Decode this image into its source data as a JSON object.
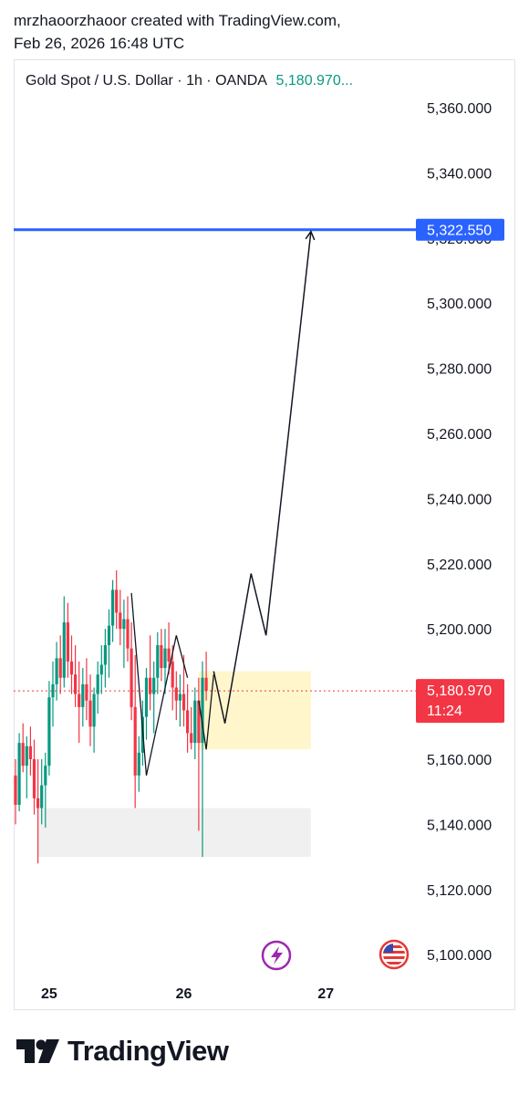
{
  "header": {
    "line1": "mrzhaoorzhaoor created with TradingView.com,",
    "line2": "Feb 26, 2026 16:48 UTC"
  },
  "symbol_info": {
    "title": "Gold Spot / U.S. Dollar · 1h · OANDA",
    "price": "5,180.970..."
  },
  "price_labels": {
    "target": "5,322.550",
    "current": "5,180.970",
    "countdown": "11:24"
  },
  "footer": {
    "brand": "TradingView"
  },
  "colors": {
    "up": "#089981",
    "down": "#f23645",
    "target_line": "#2962ff",
    "zone": "#fff6cc",
    "support": "#f0f0f0"
  },
  "chart_data": {
    "type": "candlestick",
    "title": "Gold Spot / U.S. Dollar · 1h · OANDA",
    "ylim": [
      5093,
      5368
    ],
    "y_ticks": [
      "5,100.000",
      "5,120.000",
      "5,140.000",
      "5,160.000",
      "5,180.000",
      "5,200.000",
      "5,220.000",
      "5,240.000",
      "5,260.000",
      "5,280.000",
      "5,300.000",
      "5,320.000",
      "5,340.000",
      "5,360.000"
    ],
    "x_ticks": [
      {
        "label": "25",
        "bar": 9
      },
      {
        "label": "26",
        "bar": 45
      },
      {
        "label": "27",
        "bar": 83
      }
    ],
    "candles": [
      [
        5155,
        5160,
        5140,
        5146
      ],
      [
        5146,
        5168,
        5144,
        5165
      ],
      [
        5165,
        5171,
        5156,
        5158
      ],
      [
        5158,
        5167,
        5148,
        5164
      ],
      [
        5164,
        5170,
        5155,
        5160
      ],
      [
        5160,
        5166,
        5143,
        5148
      ],
      [
        5148,
        5160,
        5128,
        5145
      ],
      [
        5145,
        5160,
        5140,
        5152
      ],
      [
        5152,
        5162,
        5139,
        5158
      ],
      [
        5158,
        5184,
        5155,
        5179
      ],
      [
        5179,
        5190,
        5170,
        5183
      ],
      [
        5183,
        5196,
        5178,
        5191
      ],
      [
        5191,
        5198,
        5180,
        5185
      ],
      [
        5185,
        5210,
        5182,
        5202
      ],
      [
        5202,
        5208,
        5185,
        5190
      ],
      [
        5190,
        5198,
        5180,
        5186
      ],
      [
        5186,
        5195,
        5176,
        5180
      ],
      [
        5180,
        5190,
        5165,
        5176
      ],
      [
        5176,
        5188,
        5170,
        5183
      ],
      [
        5183,
        5191,
        5172,
        5178
      ],
      [
        5178,
        5186,
        5164,
        5170
      ],
      [
        5170,
        5182,
        5162,
        5180
      ],
      [
        5180,
        5190,
        5174,
        5186
      ],
      [
        5186,
        5195,
        5180,
        5189
      ],
      [
        5189,
        5200,
        5182,
        5195
      ],
      [
        5195,
        5206,
        5185,
        5201
      ],
      [
        5201,
        5215,
        5196,
        5212
      ],
      [
        5212,
        5218,
        5200,
        5205
      ],
      [
        5205,
        5212,
        5195,
        5200
      ],
      [
        5200,
        5209,
        5188,
        5203
      ],
      [
        5203,
        5210,
        5190,
        5194
      ],
      [
        5194,
        5202,
        5172,
        5176
      ],
      [
        5176,
        5192,
        5145,
        5155
      ],
      [
        5155,
        5167,
        5150,
        5162
      ],
      [
        5162,
        5178,
        5158,
        5173
      ],
      [
        5173,
        5188,
        5166,
        5185
      ],
      [
        5185,
        5198,
        5175,
        5180
      ],
      [
        5180,
        5190,
        5168,
        5185
      ],
      [
        5185,
        5199,
        5180,
        5195
      ],
      [
        5195,
        5200,
        5184,
        5188
      ],
      [
        5188,
        5200,
        5180,
        5194
      ],
      [
        5194,
        5202,
        5186,
        5190
      ],
      [
        5190,
        5195,
        5175,
        5182
      ],
      [
        5182,
        5187,
        5172,
        5178
      ],
      [
        5178,
        5186,
        5170,
        5180
      ],
      [
        5180,
        5192,
        5170,
        5175
      ],
      [
        5175,
        5183,
        5162,
        5168
      ],
      [
        5168,
        5176,
        5163,
        5165
      ],
      [
        5165,
        5182,
        5160,
        5178
      ],
      [
        5178,
        5185,
        5138,
        5165
      ],
      [
        5165,
        5190,
        5130,
        5185
      ],
      [
        5185,
        5193,
        5178,
        5181
      ]
    ],
    "projection_path": [
      [
        53,
        5187
      ],
      [
        56,
        5171
      ],
      [
        63,
        5217
      ],
      [
        67,
        5198
      ],
      [
        79,
        5322
      ]
    ],
    "zones": [
      {
        "name": "demand-zone",
        "x0": 49,
        "x1": 79,
        "y0": 5163,
        "y1": 5187
      },
      {
        "name": "support-zone",
        "x0": 6,
        "x1": 79,
        "y0": 5130,
        "y1": 5145
      }
    ],
    "swing_lines": [
      [
        [
          31,
          5211
        ],
        [
          35,
          5155
        ],
        [
          43,
          5198
        ],
        [
          46,
          5185
        ]
      ],
      [
        [
          49,
          5178
        ],
        [
          51,
          5163
        ],
        [
          53,
          5186
        ]
      ]
    ],
    "target_level": 5322.55,
    "last_price": 5180.97
  }
}
